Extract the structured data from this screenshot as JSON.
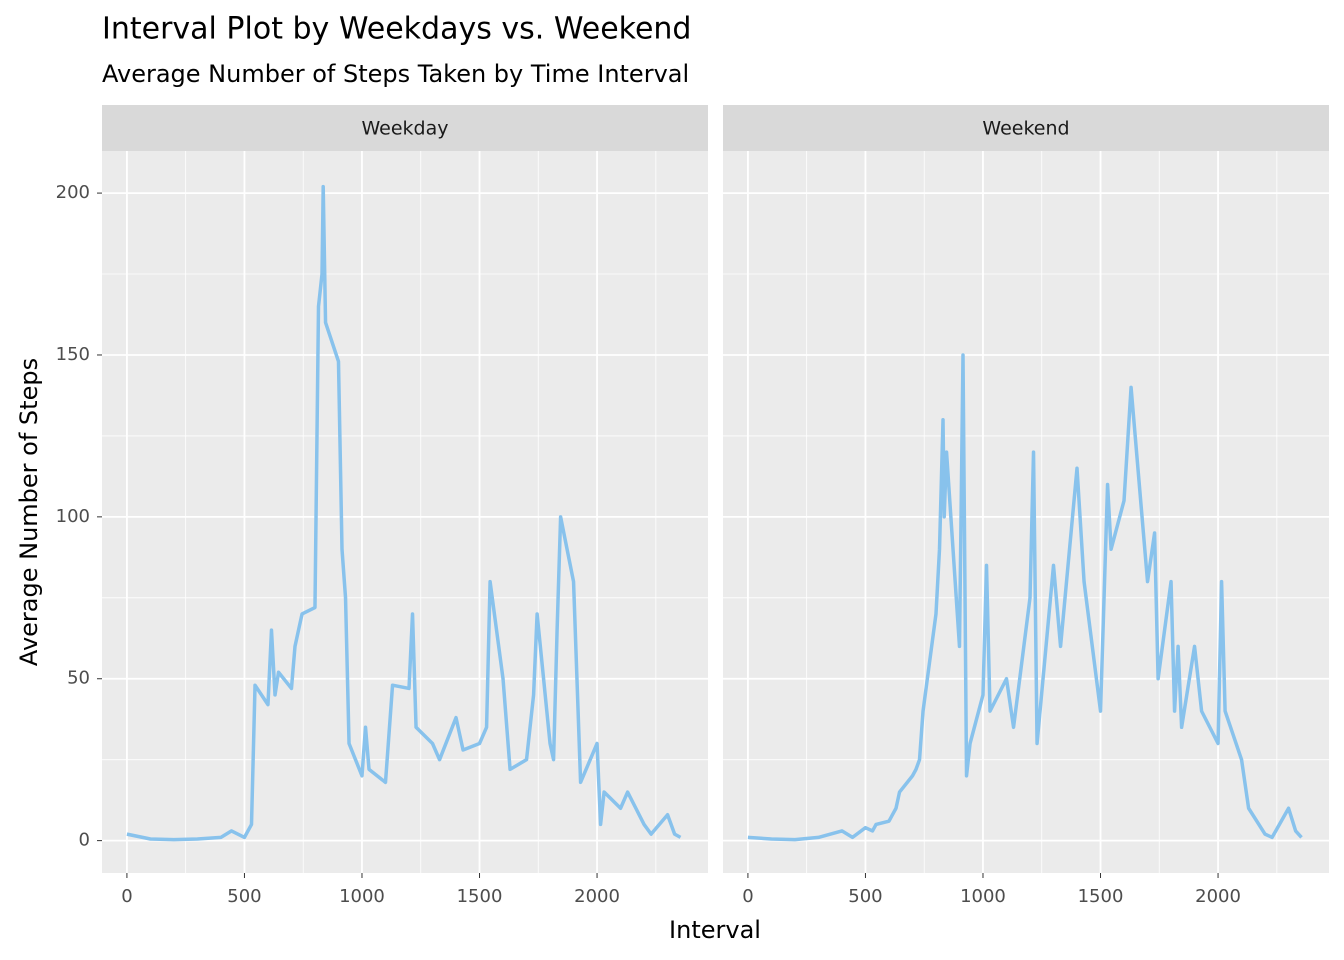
{
  "chart_data": {
    "type": "line",
    "title": "Interval Plot by Weekdays vs. Weekend",
    "subtitle": "Average Number of Steps Taken by Time Interval",
    "x_label": "Interval",
    "y_label": "Average Number of Steps",
    "color": "#88c2ec",
    "grid": true,
    "x": [
      0,
      100,
      200,
      300,
      400,
      445,
      500,
      530,
      545,
      600,
      615,
      630,
      645,
      700,
      715,
      730,
      745,
      800,
      815,
      830,
      835,
      845,
      900,
      915,
      930,
      945,
      1000,
      1015,
      1030,
      1100,
      1130,
      1200,
      1215,
      1230,
      1300,
      1330,
      1400,
      1430,
      1500,
      1530,
      1545,
      1600,
      1630,
      1700,
      1730,
      1745,
      1800,
      1815,
      1830,
      1845,
      1900,
      1930,
      2000,
      2015,
      2030,
      2100,
      2130,
      2200,
      2230,
      2300,
      2330,
      2355
    ],
    "facets": [
      {
        "name": "Weekday",
        "values": [
          2,
          0.5,
          0.3,
          0.5,
          1,
          3,
          1,
          5,
          48,
          42,
          65,
          45,
          52,
          47,
          60,
          65,
          70,
          72,
          165,
          175,
          202,
          160,
          148,
          90,
          75,
          30,
          20,
          35,
          22,
          18,
          48,
          47,
          70,
          35,
          30,
          25,
          38,
          28,
          30,
          35,
          80,
          50,
          22,
          25,
          45,
          70,
          30,
          25,
          65,
          100,
          80,
          18,
          30,
          5,
          15,
          10,
          15,
          5,
          2,
          8,
          2,
          1
        ]
      },
      {
        "name": "Weekend",
        "values": [
          1,
          0.5,
          0.3,
          1,
          3,
          1,
          4,
          3,
          5,
          6,
          8,
          10,
          15,
          20,
          22,
          25,
          40,
          70,
          90,
          130,
          100,
          120,
          60,
          150,
          20,
          30,
          45,
          85,
          40,
          50,
          35,
          75,
          120,
          30,
          85,
          60,
          115,
          80,
          40,
          110,
          90,
          105,
          140,
          80,
          95,
          50,
          80,
          40,
          60,
          35,
          60,
          40,
          30,
          80,
          40,
          25,
          10,
          2,
          1,
          10,
          3,
          1
        ]
      }
    ],
    "xlim": [
      -106,
      2472
    ],
    "ylim": [
      -10,
      213
    ],
    "xticks": [
      0,
      500,
      1000,
      1500,
      2000
    ],
    "yticks": [
      0,
      50,
      100,
      150,
      200
    ],
    "x_minor_ticks": [
      250,
      750,
      1250,
      1750,
      2250
    ],
    "y_minor_ticks": [
      25,
      75,
      125,
      175
    ]
  }
}
